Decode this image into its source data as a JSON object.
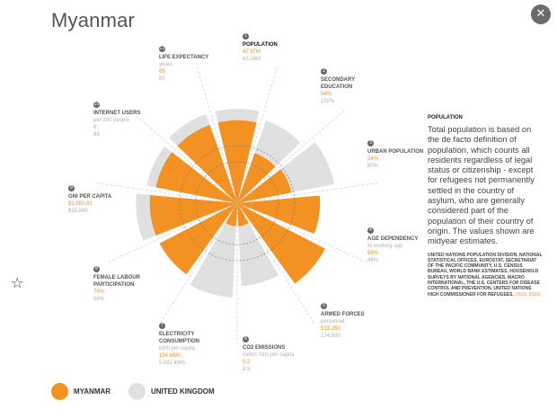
{
  "page": {
    "title": "Myanmar",
    "close_icon": "close-icon",
    "star_icon": "star-icon"
  },
  "colors": {
    "myanmar": "#f39122",
    "uk": "#e0e0e0"
  },
  "indicators": [
    {
      "key": "population",
      "name": "POPULATION",
      "unit": "",
      "value1": "47.97M",
      "value2": "62.24M"
    },
    {
      "key": "secondary-education",
      "name": "SECONDARY EDUCATION",
      "unit": "",
      "value1": "54%",
      "value2": "102%"
    },
    {
      "key": "urban-population",
      "name": "URBAN POPULATION",
      "unit": "",
      "value1": "34%",
      "value2": "80%"
    },
    {
      "key": "age-dependency",
      "name": "AGE DEPENDENCY",
      "unit": "% working age",
      "value1": "69%",
      "value2": "46%"
    },
    {
      "key": "armed-forces",
      "name": "ARMED FORCES",
      "unit": "personnel",
      "value1": "513,250",
      "value2": "174,500"
    },
    {
      "key": "co2-emissions",
      "name": "CO2 EMISSIONS",
      "unit": "metric tons per capita",
      "value1": "0.2",
      "value2": "8.5"
    },
    {
      "key": "electricity-consumption",
      "name": "ELECTRICITY CONSUMPTION",
      "unit": "kWh per capita",
      "value1": "104 kWh",
      "value2": "5,692 kWh"
    },
    {
      "key": "female-labour",
      "name": "FEMALE LABOUR PARTICIPATION",
      "unit": "",
      "value1": "75%",
      "value2": "56%"
    },
    {
      "key": "gni-per-capita",
      "name": "GNI PER CAPITA",
      "unit": "",
      "value1": "$1,950.01",
      "value2": "$35,840"
    },
    {
      "key": "internet-users",
      "name": "INTERNET USERS",
      "unit": "per 100 people",
      "value1": "0",
      "value2": "85"
    },
    {
      "key": "life-expectancy",
      "name": "LIFE EXPECTANCY",
      "unit": "years",
      "value1": "65",
      "value2": "80"
    }
  ],
  "chart_data": {
    "type": "radial-bar",
    "series": [
      {
        "name": "MYANMAR",
        "values": [
          0.72,
          0.46,
          0.48,
          0.72,
          0.86,
          0.2,
          0.2,
          0.76,
          0.76,
          0.72,
          0.72
        ]
      },
      {
        "name": "UNITED KINGDOM",
        "values": [
          0.82,
          0.76,
          0.86,
          0.7,
          0.64,
          0.72,
          0.82,
          0.74,
          0.88,
          0.8,
          0.82
        ]
      }
    ]
  },
  "description": {
    "title": "POPULATION",
    "text": "Total population is based on the de facto definition of population, which counts all residents regardless of legal status or citizenship - except for refugees not permanently settled in the country of asylum, who are generally considered part of the population of their country of origin. The values shown are midyear estimates.",
    "source": "UNITED NATIONS POPULATION DIVISION, NATIONAL STATISTICAL OFFICES, EUROSTAT, SECRETARIAT OF THE PACIFIC COMMUNITY, U.S. CENSUS BUREAU, WORLD BANK ESTIMATES, HOUSEHOLD SURVEYS BY NATIONAL AGENCIES, MACRO INTERNATIONAL, THE U.S. CENTERS FOR DISEASE CONTROL AND PREVENTION, UNITED NATIONS HIGH COMMISSIONER FOR REFUGEES.",
    "years": "(2010, 2010)"
  },
  "legend": [
    {
      "label": "MYANMAR",
      "color": "#f39122"
    },
    {
      "label": "UNITED KINGDOM",
      "color": "#e0e0e0"
    }
  ]
}
